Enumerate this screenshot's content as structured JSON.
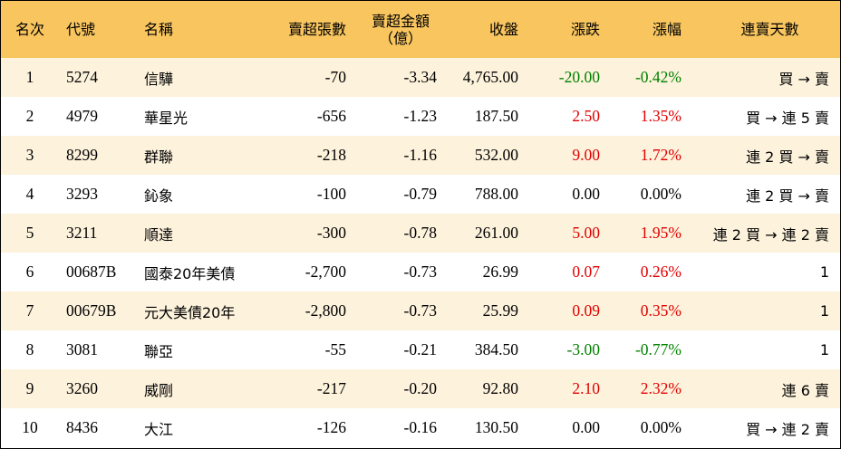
{
  "header": {
    "rank": "名次",
    "code": "代號",
    "name": "名稱",
    "shares": "賣超張數",
    "amount_line1": "賣超金額",
    "amount_line2": "（億）",
    "close": "收盤",
    "change": "漲跌",
    "pct": "漲幅",
    "days": "連賣天數"
  },
  "colors": {
    "header_bg": "#f8c55f",
    "stripe_bg": "#fdf2dc",
    "up": "#e00000",
    "down": "#008000"
  },
  "rows": [
    {
      "rank": "1",
      "code": "5274",
      "name": "信驊",
      "shares": "-70",
      "amount": "-3.34",
      "close": "4,765.00",
      "change": "-20.00",
      "pct": "-0.42%",
      "days": "買 → 賣",
      "dir": "down"
    },
    {
      "rank": "2",
      "code": "4979",
      "name": "華星光",
      "shares": "-656",
      "amount": "-1.23",
      "close": "187.50",
      "change": "2.50",
      "pct": "1.35%",
      "days": "買 → 連 5 賣",
      "dir": "up"
    },
    {
      "rank": "3",
      "code": "8299",
      "name": "群聯",
      "shares": "-218",
      "amount": "-1.16",
      "close": "532.00",
      "change": "9.00",
      "pct": "1.72%",
      "days": "連 2 買 → 賣",
      "dir": "up"
    },
    {
      "rank": "4",
      "code": "3293",
      "name": "鈊象",
      "shares": "-100",
      "amount": "-0.79",
      "close": "788.00",
      "change": "0.00",
      "pct": "0.00%",
      "days": "連 2 買 → 賣",
      "dir": "flat"
    },
    {
      "rank": "5",
      "code": "3211",
      "name": "順達",
      "shares": "-300",
      "amount": "-0.78",
      "close": "261.00",
      "change": "5.00",
      "pct": "1.95%",
      "days": "連 2 買 → 連 2 賣",
      "dir": "up"
    },
    {
      "rank": "6",
      "code": "00687B",
      "name": "國泰20年美債",
      "shares": "-2,700",
      "amount": "-0.73",
      "close": "26.99",
      "change": "0.07",
      "pct": "0.26%",
      "days": "1",
      "dir": "up"
    },
    {
      "rank": "7",
      "code": "00679B",
      "name": "元大美債20年",
      "shares": "-2,800",
      "amount": "-0.73",
      "close": "25.99",
      "change": "0.09",
      "pct": "0.35%",
      "days": "1",
      "dir": "up"
    },
    {
      "rank": "8",
      "code": "3081",
      "name": "聯亞",
      "shares": "-55",
      "amount": "-0.21",
      "close": "384.50",
      "change": "-3.00",
      "pct": "-0.77%",
      "days": "1",
      "dir": "down"
    },
    {
      "rank": "9",
      "code": "3260",
      "name": "威剛",
      "shares": "-217",
      "amount": "-0.20",
      "close": "92.80",
      "change": "2.10",
      "pct": "2.32%",
      "days": "連 6 賣",
      "dir": "up"
    },
    {
      "rank": "10",
      "code": "8436",
      "name": "大江",
      "shares": "-126",
      "amount": "-0.16",
      "close": "130.50",
      "change": "0.00",
      "pct": "0.00%",
      "days": "買 → 連 2 賣",
      "dir": "flat"
    }
  ]
}
